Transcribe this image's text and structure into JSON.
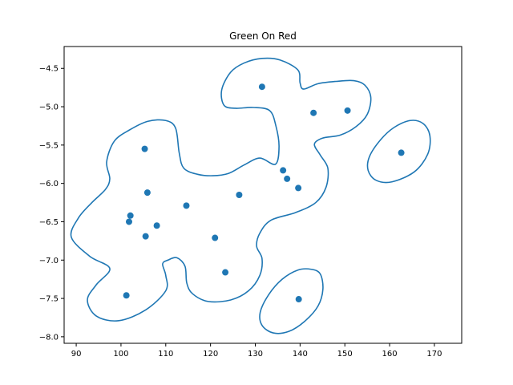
{
  "chart_data": {
    "type": "scatter",
    "title": "Green On Red",
    "xlabel": "",
    "ylabel": "",
    "xlim": [
      87.3,
      176.1
    ],
    "ylim": [
      -8.085,
      -4.215
    ],
    "xticks": [
      90,
      100,
      110,
      120,
      130,
      140,
      150,
      160,
      170
    ],
    "xtick_labels": [
      "90",
      "100",
      "110",
      "120",
      "130",
      "140",
      "150",
      "160",
      "170"
    ],
    "yticks": [
      -4.5,
      -5.0,
      -5.5,
      -6.0,
      -6.5,
      -7.0,
      -7.5,
      -8.0
    ],
    "ytick_labels": [
      "−4.5",
      "−5.0",
      "−5.5",
      "−6.0",
      "−6.5",
      "−7.0",
      "−7.5",
      "−8.0"
    ],
    "grid": false,
    "color": "#1f77b4",
    "series": [
      {
        "points": [
          [
            131.5,
            -4.74
          ],
          [
            143.0,
            -5.08
          ],
          [
            150.6,
            -5.05
          ],
          [
            162.6,
            -5.6
          ],
          [
            105.3,
            -5.55
          ],
          [
            136.2,
            -5.83
          ],
          [
            137.1,
            -5.94
          ],
          [
            139.6,
            -6.06
          ],
          [
            105.9,
            -6.12
          ],
          [
            126.4,
            -6.15
          ],
          [
            114.6,
            -6.29
          ],
          [
            102.1,
            -6.42
          ],
          [
            101.8,
            -6.5
          ],
          [
            108.0,
            -6.55
          ],
          [
            105.5,
            -6.69
          ],
          [
            121.0,
            -6.71
          ],
          [
            123.3,
            -7.16
          ],
          [
            101.2,
            -7.46
          ],
          [
            139.7,
            -7.51
          ]
        ]
      }
    ],
    "contours": [
      {
        "points": [
          [
            131.5,
            -4.37
          ],
          [
            135.5,
            -4.39
          ],
          [
            139.5,
            -4.52
          ],
          [
            140.0,
            -4.69
          ],
          [
            140.8,
            -4.77
          ],
          [
            144.0,
            -4.7
          ],
          [
            148.0,
            -4.67
          ],
          [
            152.0,
            -4.66
          ],
          [
            154.5,
            -4.72
          ],
          [
            155.8,
            -4.88
          ],
          [
            155.0,
            -5.1
          ],
          [
            152.5,
            -5.26
          ],
          [
            149.0,
            -5.37
          ],
          [
            145.0,
            -5.41
          ],
          [
            143.2,
            -5.49
          ],
          [
            144.5,
            -5.63
          ],
          [
            146.2,
            -5.8
          ],
          [
            145.8,
            -6.05
          ],
          [
            143.5,
            -6.25
          ],
          [
            139.0,
            -6.38
          ],
          [
            133.5,
            -6.48
          ],
          [
            131.0,
            -6.65
          ],
          [
            130.3,
            -6.82
          ],
          [
            131.5,
            -6.98
          ],
          [
            131.0,
            -7.2
          ],
          [
            128.5,
            -7.4
          ],
          [
            124.5,
            -7.52
          ],
          [
            119.5,
            -7.54
          ],
          [
            116.0,
            -7.44
          ],
          [
            114.7,
            -7.3
          ],
          [
            114.3,
            -7.08
          ],
          [
            112.5,
            -6.97
          ],
          [
            110.5,
            -7.0
          ],
          [
            109.3,
            -7.05
          ],
          [
            110.0,
            -7.2
          ],
          [
            110.0,
            -7.4
          ],
          [
            105.5,
            -7.65
          ],
          [
            99.5,
            -7.79
          ],
          [
            94.5,
            -7.73
          ],
          [
            92.5,
            -7.52
          ],
          [
            94.5,
            -7.32
          ],
          [
            97.5,
            -7.11
          ],
          [
            93.0,
            -6.95
          ],
          [
            88.9,
            -6.7
          ],
          [
            90.5,
            -6.45
          ],
          [
            93.5,
            -6.25
          ],
          [
            96.5,
            -6.08
          ],
          [
            97.5,
            -5.94
          ],
          [
            96.8,
            -5.72
          ],
          [
            98.5,
            -5.45
          ],
          [
            102.0,
            -5.3
          ],
          [
            106.0,
            -5.19
          ],
          [
            110.0,
            -5.18
          ],
          [
            112.2,
            -5.28
          ],
          [
            113.0,
            -5.6
          ],
          [
            114.0,
            -5.8
          ],
          [
            117.0,
            -5.88
          ],
          [
            120.5,
            -5.9
          ],
          [
            124.0,
            -5.87
          ],
          [
            127.5,
            -5.76
          ],
          [
            131.0,
            -5.67
          ],
          [
            134.5,
            -5.75
          ],
          [
            135.3,
            -5.52
          ],
          [
            134.6,
            -5.25
          ],
          [
            133.2,
            -5.05
          ],
          [
            129.5,
            -5.01
          ],
          [
            125.5,
            -5.02
          ],
          [
            123.0,
            -4.98
          ],
          [
            122.5,
            -4.78
          ],
          [
            124.5,
            -4.55
          ],
          [
            127.5,
            -4.43
          ]
        ]
      },
      {
        "points": [
          [
            164.6,
            -5.18
          ],
          [
            167.5,
            -5.22
          ],
          [
            169.0,
            -5.38
          ],
          [
            168.5,
            -5.62
          ],
          [
            165.5,
            -5.85
          ],
          [
            160.5,
            -5.98
          ],
          [
            157.0,
            -5.96
          ],
          [
            155.2,
            -5.83
          ],
          [
            155.5,
            -5.65
          ],
          [
            158.0,
            -5.43
          ],
          [
            161.0,
            -5.27
          ]
        ]
      },
      {
        "points": [
          [
            142.5,
            -7.12
          ],
          [
            144.5,
            -7.18
          ],
          [
            145.1,
            -7.38
          ],
          [
            144.0,
            -7.6
          ],
          [
            141.0,
            -7.8
          ],
          [
            137.5,
            -7.93
          ],
          [
            134.0,
            -7.95
          ],
          [
            131.5,
            -7.85
          ],
          [
            131.1,
            -7.68
          ],
          [
            133.0,
            -7.45
          ],
          [
            136.0,
            -7.25
          ],
          [
            139.5,
            -7.13
          ]
        ]
      }
    ]
  }
}
